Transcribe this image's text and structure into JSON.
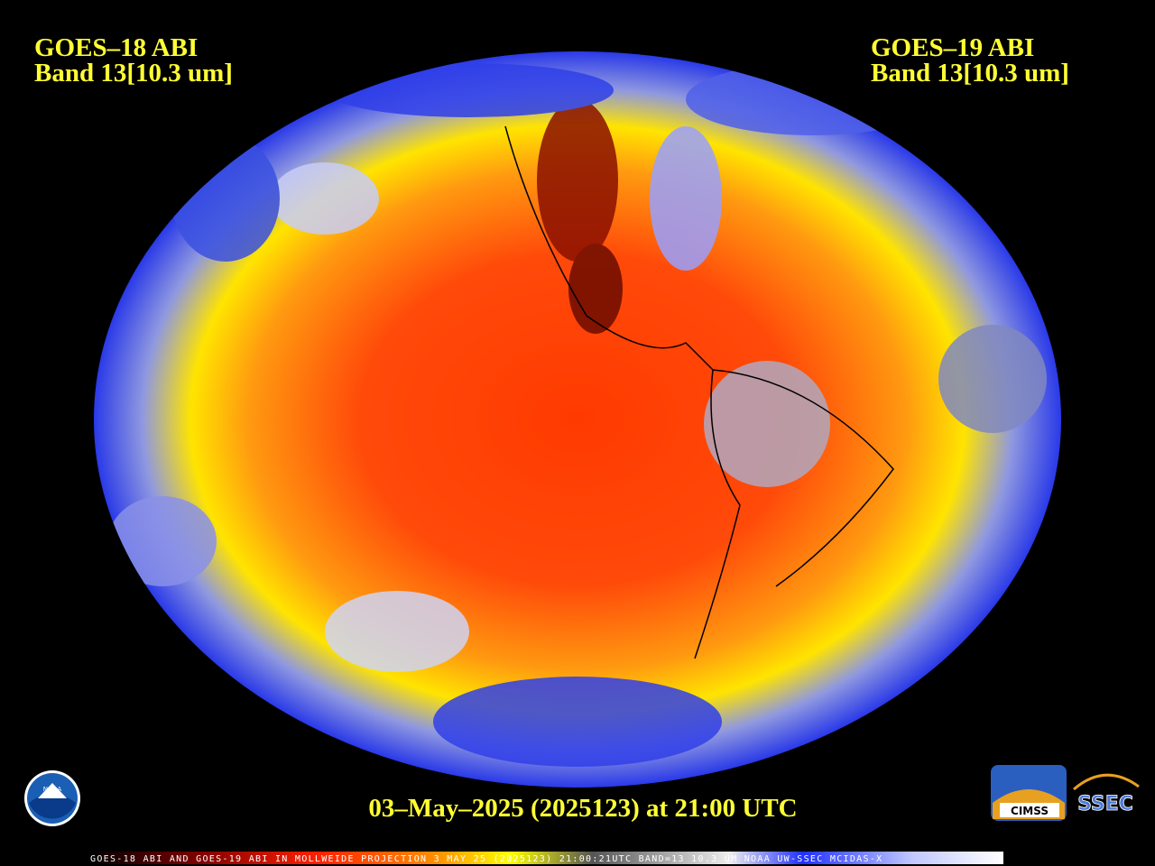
{
  "header": {
    "left": {
      "line1": "GOES–18 ABI",
      "line2": "Band 13[10.3 um]"
    },
    "right": {
      "line1": "GOES–19 ABI",
      "line2": "Band 13[10.3 um]"
    }
  },
  "timestamp": "03–May–2025 (2025123) at 21:00 UTC",
  "footer": "GOES-18 ABI AND GOES-19 ABI IN MOLLWEIDE PROJECTION 3 MAY 25 (2025123) 21:00:21UTC BAND=13 10.3 UM NOAA UW-SSEC MCIDAS-X",
  "logos": {
    "noaa": "NOAA",
    "cimss": "CIMSS",
    "ssec": "SSEC"
  }
}
